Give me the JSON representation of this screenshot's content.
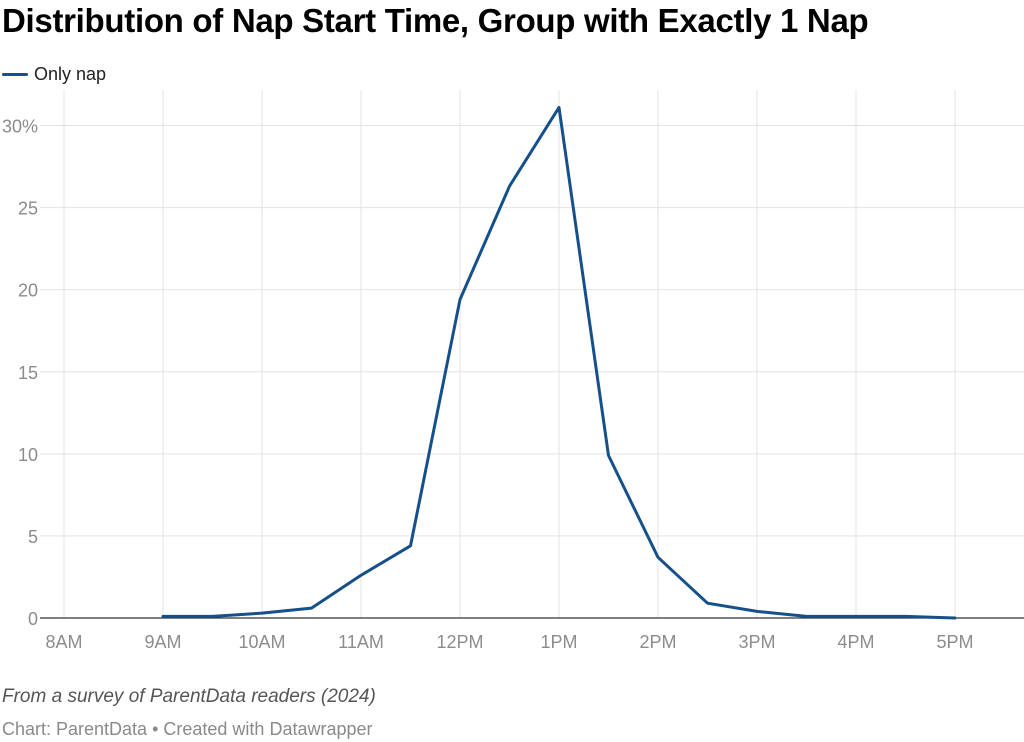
{
  "title": "Distribution of Nap Start Time, Group with Exactly 1 Nap",
  "legend": [
    {
      "label": "Only nap",
      "color": "#15508a"
    }
  ],
  "chart_data": {
    "type": "line",
    "title": "Distribution of Nap Start Time, Group with Exactly 1 Nap",
    "xlabel": "",
    "ylabel": "",
    "x_tick_labels": [
      "8AM",
      "9AM",
      "10AM",
      "11AM",
      "12PM",
      "1PM",
      "2PM",
      "3PM",
      "4PM",
      "5PM"
    ],
    "x_tick_hours": [
      8,
      9,
      10,
      11,
      12,
      13,
      14,
      15,
      16,
      17
    ],
    "y_tick_labels": [
      "0",
      "5",
      "10",
      "15",
      "20",
      "25",
      "30%"
    ],
    "y_ticks": [
      0,
      5,
      10,
      15,
      20,
      25,
      30
    ],
    "ylim": [
      0,
      31
    ],
    "grid": true,
    "legend_position": "top-left",
    "series": [
      {
        "name": "Only nap",
        "color": "#15508a",
        "x": [
          9,
          9.5,
          10,
          10.5,
          11,
          11.5,
          12,
          12.5,
          13,
          13.5,
          14,
          14.5,
          15,
          15.5,
          16,
          16.5,
          17
        ],
        "y": [
          0.1,
          0.1,
          0.3,
          0.6,
          2.6,
          4.4,
          19.4,
          26.3,
          31.1,
          9.9,
          3.7,
          0.9,
          0.4,
          0.1,
          0.1,
          0.1,
          0.0
        ]
      }
    ]
  },
  "footer": {
    "note": "From a survey of ParentData readers (2024)",
    "chart_credit": "Chart: ParentData",
    "separator": "•",
    "created_with": "Created with Datawrapper"
  }
}
